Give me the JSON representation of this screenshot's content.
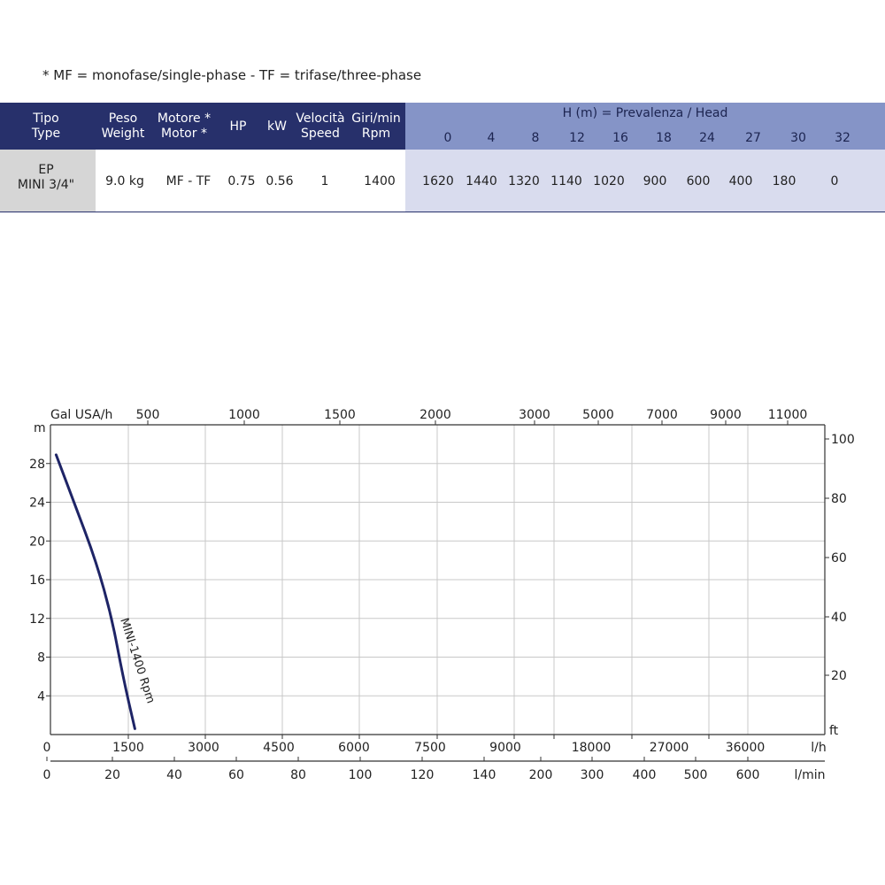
{
  "note": "* MF = monofase/single-phase - TF = trifase/three-phase",
  "table": {
    "headers": [
      {
        "l1": "Tipo",
        "l2": "Type"
      },
      {
        "l1": "Peso",
        "l2": "Weight"
      },
      {
        "l1": "Motore *",
        "l2": "Motor *"
      },
      {
        "l1": "HP",
        "l2": ""
      },
      {
        "l1": "kW",
        "l2": ""
      },
      {
        "l1": "Velocità",
        "l2": "Speed"
      },
      {
        "l1": "Giri/min",
        "l2": "Rpm"
      }
    ],
    "head_title": "H (m) = Prevalenza /  Head",
    "head_values": [
      "0",
      "4",
      "8",
      "12",
      "16",
      "18",
      "24",
      "27",
      "30",
      "32"
    ],
    "row": {
      "tipo_l1": "EP",
      "tipo_l2": "MINI 3/4\"",
      "peso": "9.0 kg",
      "motore": "MF - TF",
      "hp": "0.75",
      "kw": "0.56",
      "velocita": "1",
      "giri": "1400",
      "flows": [
        "1620",
        "1440",
        "1320",
        "1140",
        "1020",
        "900",
        "600",
        "400",
        "180",
        "0"
      ]
    }
  },
  "chart_data": {
    "type": "line",
    "title": "",
    "y_left_unit": "m",
    "y_left_ticks": [
      "4",
      "8",
      "12",
      "16",
      "20",
      "24",
      "28"
    ],
    "y_left_range": [
      0,
      32
    ],
    "y_right_unit": "ft",
    "y_right_ticks": [
      "20",
      "40",
      "60",
      "80",
      "100"
    ],
    "top_unit": "Gal USA/h",
    "top_ticks": [
      "500",
      "1000",
      "1500",
      "2000",
      "3000",
      "5000",
      "7000",
      "9000",
      "11000"
    ],
    "x_lh_unit": "l/h",
    "x_lh_ticks": [
      "0",
      "1500",
      "3000",
      "4500",
      "6000",
      "7500",
      "9000",
      "18000",
      "27000",
      "36000"
    ],
    "x_lmin_unit": "l/min",
    "x_lmin_ticks": [
      "0",
      "20",
      "40",
      "60",
      "80",
      "100",
      "120",
      "140",
      "200",
      "300",
      "400",
      "500",
      "600"
    ],
    "grid": true,
    "series": [
      {
        "name": "MINI-1400 Rpm",
        "color": "#1e2466",
        "x_lh": [
          170,
          500,
          900,
          1200,
          1400,
          1620
        ],
        "y_m": [
          28.9,
          24,
          18,
          12,
          6,
          0.6
        ]
      }
    ]
  }
}
